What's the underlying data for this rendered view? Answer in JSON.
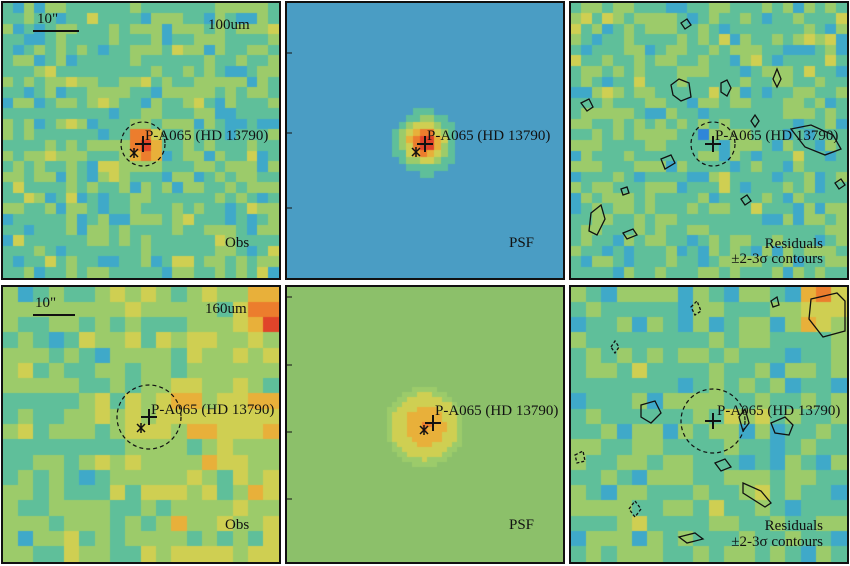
{
  "source_label": "P-A065 (HD 13790)",
  "scale_label": "10\"",
  "rows": [
    {
      "band": "100um",
      "panels": [
        {
          "kind": "obs",
          "label": "Obs"
        },
        {
          "kind": "psf",
          "label": "PSF"
        },
        {
          "kind": "res",
          "label_line1": "Residuals",
          "label_line2": "±2-3σ contours"
        }
      ]
    },
    {
      "band": "160um",
      "panels": [
        {
          "kind": "obs",
          "label": "Obs"
        },
        {
          "kind": "psf",
          "label": "PSF"
        },
        {
          "kind": "res",
          "label_line1": "Residuals",
          "label_line2": "±2-3σ contours"
        }
      ]
    }
  ],
  "colors": {
    "colormap": [
      "#3a1a8a",
      "#3b4fc8",
      "#2f86d8",
      "#3fa9c9",
      "#5fbf9a",
      "#9ccb6a",
      "#cfcf52",
      "#e8b03a",
      "#ec7d2d",
      "#e0442a"
    ],
    "psf_background_row1": "#4a9dc4",
    "psf_background_row2": "#8cc06a"
  }
}
